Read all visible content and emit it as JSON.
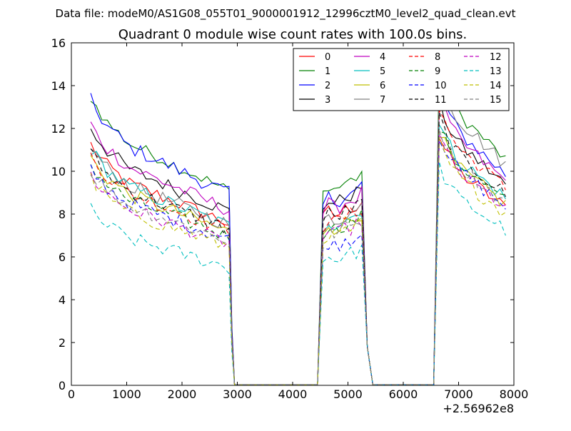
{
  "header": {
    "suptitle": "Data file: modeM0/AS1G08_055T01_9000001912_12996cztM0_level2_quad_clean.evt"
  },
  "chart_data": {
    "type": "line",
    "title": "Quadrant 0 module wise count rates with 100.0s bins.",
    "xlabel": "",
    "ylabel": "",
    "x_offset_label": "+2.56962e8",
    "xlim": [
      0,
      8000
    ],
    "ylim": [
      0,
      16
    ],
    "xticks": [
      0,
      1000,
      2000,
      3000,
      4000,
      5000,
      6000,
      7000,
      8000
    ],
    "yticks": [
      0,
      2,
      4,
      6,
      8,
      10,
      12,
      14,
      16
    ],
    "grid": false,
    "legend_position": "top-right",
    "segments": [
      {
        "x_start": 350,
        "x_end": 2850,
        "step": 100
      },
      {
        "x_start": 4550,
        "x_end": 5250,
        "step": 100
      },
      {
        "x_start": 6650,
        "x_end": 7850,
        "step": 100
      }
    ],
    "shape": {
      "seg1": [
        1.1,
        1.06,
        1.03,
        1.0,
        0.98,
        0.96,
        0.94,
        0.92,
        0.91,
        0.9,
        0.89,
        0.88,
        0.87,
        0.86,
        0.85,
        0.84,
        0.83,
        0.82,
        0.81,
        0.8,
        0.79,
        0.78,
        0.77,
        0.76,
        0.75,
        0.74
      ],
      "seg2": [
        0.86,
        0.9,
        0.88,
        0.89,
        0.91,
        0.92,
        0.93,
        0.96
      ],
      "seg3": [
        1.18,
        1.12,
        1.07,
        1.03,
        1.0,
        0.98,
        0.96,
        0.94,
        0.92,
        0.9,
        0.88,
        0.86,
        0.84
      ]
    },
    "series": [
      {
        "name": "0",
        "color": "#ff0000",
        "dash": "solid",
        "levels": [
          11.0,
          9.7,
          10.6
        ],
        "noise": 0.35
      },
      {
        "name": "1",
        "color": "#008000",
        "dash": "solid",
        "levels": [
          13.2,
          11.2,
          13.5
        ],
        "noise": 0.3
      },
      {
        "name": "2",
        "color": "#0000ff",
        "dash": "solid",
        "levels": [
          13.0,
          10.5,
          12.6
        ],
        "noise": 0.35
      },
      {
        "name": "3",
        "color": "#000000",
        "dash": "solid",
        "levels": [
          11.8,
          10.4,
          12.0
        ],
        "noise": 0.35
      },
      {
        "name": "4",
        "color": "#bf00bf",
        "dash": "solid",
        "levels": [
          11.9,
          10.1,
          12.2
        ],
        "noise": 0.35
      },
      {
        "name": "5",
        "color": "#00bfbf",
        "dash": "solid",
        "levels": [
          10.8,
          9.2,
          11.2
        ],
        "noise": 0.35
      },
      {
        "name": "6",
        "color": "#bfbf00",
        "dash": "solid",
        "levels": [
          10.4,
          9.0,
          10.8
        ],
        "noise": 0.35
      },
      {
        "name": "7",
        "color": "#808080",
        "dash": "solid",
        "levels": [
          10.9,
          9.4,
          13.2
        ],
        "noise": 0.35
      },
      {
        "name": "8",
        "color": "#ff0000",
        "dash": "dashed",
        "levels": [
          10.5,
          9.3,
          11.8
        ],
        "noise": 0.35
      },
      {
        "name": "9",
        "color": "#008000",
        "dash": "dashed",
        "levels": [
          10.1,
          8.9,
          11.0
        ],
        "noise": 0.35
      },
      {
        "name": "10",
        "color": "#0000ff",
        "dash": "dashed",
        "levels": [
          9.9,
          8.0,
          10.7
        ],
        "noise": 0.35
      },
      {
        "name": "11",
        "color": "#000000",
        "dash": "dashed",
        "levels": [
          10.6,
          9.6,
          11.4
        ],
        "noise": 0.35
      },
      {
        "name": "12",
        "color": "#bf00bf",
        "dash": "dashed",
        "levels": [
          9.6,
          8.6,
          10.6
        ],
        "noise": 0.35
      },
      {
        "name": "13",
        "color": "#00bfbf",
        "dash": "dashed",
        "levels": [
          8.0,
          7.2,
          9.3
        ],
        "noise": 0.35
      },
      {
        "name": "14",
        "color": "#bfbf00",
        "dash": "dashed",
        "levels": [
          9.4,
          8.5,
          10.3
        ],
        "noise": 0.35
      },
      {
        "name": "15",
        "color": "#808080",
        "dash": "dashed",
        "levels": [
          9.8,
          8.7,
          10.9
        ],
        "noise": 0.35
      }
    ]
  }
}
